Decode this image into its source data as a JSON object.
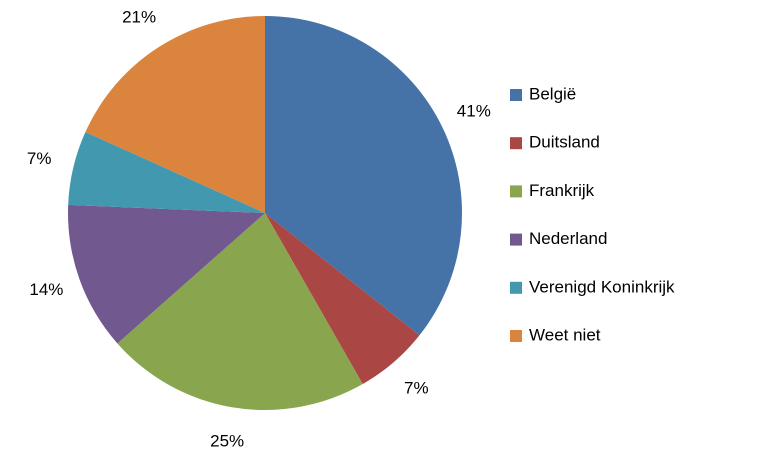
{
  "chart_data": {
    "type": "pie",
    "categories": [
      "België",
      "Duitsland",
      "Frankrijk",
      "Nederland",
      "Verenigd Koninkrijk",
      "Weet niet"
    ],
    "values": [
      41,
      7,
      25,
      14,
      7,
      21
    ],
    "value_labels": [
      "41%",
      "7%",
      "25%",
      "14%",
      "7%",
      "21%"
    ],
    "colors": [
      "#4572a7",
      "#aa4643",
      "#89a54e",
      "#71588f",
      "#4198af",
      "#db843d"
    ],
    "legend": "right"
  }
}
